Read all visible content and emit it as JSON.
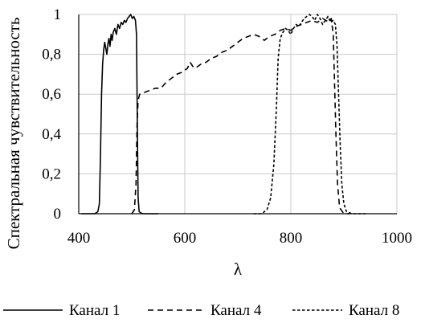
{
  "chart_data": {
    "type": "line",
    "title": "",
    "xlabel": "λ",
    "ylabel": "Спектральная чувствительность",
    "xlim": [
      400,
      1000
    ],
    "ylim": [
      0,
      1
    ],
    "x_ticks": [
      400,
      600,
      800,
      1000
    ],
    "y_ticks": [
      0,
      0.2,
      0.4,
      0.6,
      0.8,
      1
    ],
    "x_tick_labels": [
      "400",
      "600",
      "800",
      "1000"
    ],
    "y_tick_labels": [
      "0",
      "0,2",
      "0,4",
      "0,6",
      "0,8",
      "1"
    ],
    "grid": true,
    "legend_position": "bottom",
    "series": [
      {
        "name": "Канал 1",
        "dash": "solid",
        "color": "#000000",
        "points": [
          [
            405,
            0
          ],
          [
            430,
            0
          ],
          [
            436,
            0.01
          ],
          [
            439,
            0.05
          ],
          [
            441,
            0.3
          ],
          [
            443,
            0.6
          ],
          [
            445,
            0.75
          ],
          [
            447,
            0.82
          ],
          [
            449,
            0.86
          ],
          [
            451,
            0.83
          ],
          [
            453,
            0.8
          ],
          [
            455,
            0.85
          ],
          [
            457,
            0.88
          ],
          [
            459,
            0.84
          ],
          [
            461,
            0.9
          ],
          [
            463,
            0.87
          ],
          [
            465,
            0.91
          ],
          [
            468,
            0.93
          ],
          [
            471,
            0.9
          ],
          [
            474,
            0.95
          ],
          [
            477,
            0.93
          ],
          [
            480,
            0.96
          ],
          [
            483,
            0.95
          ],
          [
            486,
            0.97
          ],
          [
            489,
            0.96
          ],
          [
            492,
            0.98
          ],
          [
            495,
            0.99
          ],
          [
            498,
            1.0
          ],
          [
            501,
            0.98
          ],
          [
            504,
            0.99
          ],
          [
            507,
            0.97
          ],
          [
            509,
            0.9
          ],
          [
            510,
            0.6
          ],
          [
            511,
            0.3
          ],
          [
            512,
            0.08
          ],
          [
            514,
            0.01
          ],
          [
            520,
            0
          ],
          [
            550,
            0
          ]
        ]
      },
      {
        "name": "Канал 4",
        "dash": "long-dash",
        "color": "#000000",
        "points": [
          [
            500,
            0
          ],
          [
            505,
            0.02
          ],
          [
            508,
            0.15
          ],
          [
            510,
            0.45
          ],
          [
            512,
            0.57
          ],
          [
            515,
            0.6
          ],
          [
            525,
            0.61
          ],
          [
            535,
            0.62
          ],
          [
            545,
            0.63
          ],
          [
            555,
            0.63
          ],
          [
            565,
            0.66
          ],
          [
            575,
            0.68
          ],
          [
            585,
            0.7
          ],
          [
            595,
            0.71
          ],
          [
            605,
            0.73
          ],
          [
            610,
            0.76
          ],
          [
            615,
            0.74
          ],
          [
            620,
            0.73
          ],
          [
            630,
            0.75
          ],
          [
            640,
            0.76
          ],
          [
            650,
            0.78
          ],
          [
            660,
            0.79
          ],
          [
            670,
            0.81
          ],
          [
            680,
            0.82
          ],
          [
            690,
            0.84
          ],
          [
            700,
            0.86
          ],
          [
            710,
            0.88
          ],
          [
            720,
            0.89
          ],
          [
            730,
            0.9
          ],
          [
            740,
            0.89
          ],
          [
            750,
            0.87
          ],
          [
            760,
            0.89
          ],
          [
            770,
            0.9
          ],
          [
            780,
            0.92
          ],
          [
            790,
            0.93
          ],
          [
            800,
            0.92
          ],
          [
            810,
            0.94
          ],
          [
            820,
            0.95
          ],
          [
            830,
            0.96
          ],
          [
            840,
            0.97
          ],
          [
            850,
            0.96
          ],
          [
            860,
            0.98
          ],
          [
            866,
            0.97
          ],
          [
            872,
            0.96
          ],
          [
            876,
            0.98
          ],
          [
            880,
            0.9
          ],
          [
            882,
            0.7
          ],
          [
            885,
            0.4
          ],
          [
            888,
            0.15
          ],
          [
            892,
            0.03
          ],
          [
            900,
            0
          ],
          [
            910,
            0
          ]
        ]
      },
      {
        "name": "Канал 8",
        "dash": "short-dash",
        "color": "#000000",
        "points": [
          [
            730,
            0
          ],
          [
            745,
            0
          ],
          [
            755,
            0.02
          ],
          [
            762,
            0.08
          ],
          [
            768,
            0.25
          ],
          [
            773,
            0.55
          ],
          [
            776,
            0.78
          ],
          [
            780,
            0.88
          ],
          [
            785,
            0.91
          ],
          [
            790,
            0.93
          ],
          [
            795,
            0.92
          ],
          [
            800,
            0.9
          ],
          [
            805,
            0.93
          ],
          [
            810,
            0.95
          ],
          [
            815,
            0.94
          ],
          [
            820,
            0.96
          ],
          [
            825,
            0.98
          ],
          [
            830,
            0.99
          ],
          [
            835,
            1.0
          ],
          [
            840,
            0.99
          ],
          [
            845,
            0.97
          ],
          [
            850,
            1.0
          ],
          [
            855,
            0.98
          ],
          [
            860,
            0.95
          ],
          [
            865,
            0.97
          ],
          [
            870,
            0.99
          ],
          [
            875,
            0.96
          ],
          [
            880,
            0.97
          ],
          [
            884,
            0.95
          ],
          [
            887,
            0.85
          ],
          [
            890,
            0.6
          ],
          [
            893,
            0.35
          ],
          [
            896,
            0.15
          ],
          [
            900,
            0.05
          ],
          [
            905,
            0.01
          ],
          [
            915,
            0
          ],
          [
            945,
            0
          ]
        ]
      }
    ]
  }
}
